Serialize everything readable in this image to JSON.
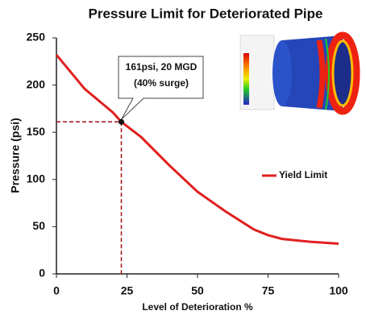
{
  "chart_data": {
    "type": "line",
    "title": "Pressure Limit for Deteriorated Pipe",
    "x_label": "Level of Deterioration %",
    "y_label": "Pressure (psi)",
    "xlim": [
      0,
      100
    ],
    "ylim": [
      0,
      250
    ],
    "xticks": [
      0,
      25,
      50,
      75,
      100
    ],
    "yticks": [
      0,
      50,
      100,
      150,
      200,
      250
    ],
    "series": [
      {
        "name": "Yield Limit",
        "color": "#e02020",
        "x": [
          0,
          10,
          20,
          23,
          30,
          40,
          50,
          60,
          70,
          75,
          80,
          90,
          100
        ],
        "values": [
          232,
          196,
          171,
          161,
          145,
          115,
          87,
          66,
          47,
          41,
          37,
          34,
          32
        ]
      }
    ],
    "annotation": {
      "x": 23,
      "y": 161,
      "text": [
        "161psi, 20 MGD",
        "(40% surge)"
      ]
    }
  }
}
